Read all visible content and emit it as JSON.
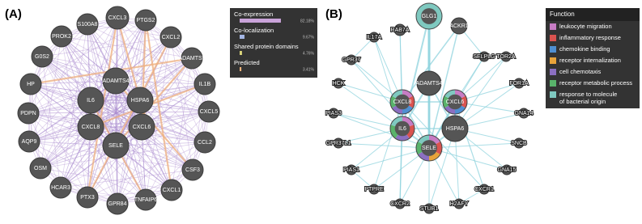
{
  "panel_a": {
    "label": "(A)",
    "nodes": [
      "CXCL3",
      "PTGS2",
      "CXCL2",
      "ADAMTS5",
      "IL1B",
      "CXCL5",
      "CCL2",
      "CSF3",
      "CXCL1",
      "TNFAIP6",
      "GPR84",
      "PTX3",
      "HCAR3",
      "OSM",
      "AQP9",
      "PDPN",
      "HP",
      "G0S2",
      "PROK2",
      "S100A8",
      "ADAMTS4",
      "IL6",
      "HSPA6",
      "CXCL8",
      "CXCL6",
      "SELE"
    ],
    "legend": {
      "items": [
        {
          "name": "Co-expression",
          "value": 82.18,
          "value_label": "82.18%",
          "color": "#c9a3d9"
        },
        {
          "name": "Co-localization",
          "value": 9.67,
          "value_label": "9.67%",
          "color": "#a3b5e3"
        },
        {
          "name": "Shared protein domains",
          "value": 4.76,
          "value_label": "4.76%",
          "color": "#d8d27a"
        },
        {
          "name": "Predicted",
          "value": 3.41,
          "value_label": "3.41%",
          "color": "#f0b27a"
        }
      ]
    }
  },
  "panel_b": {
    "label": "(B)",
    "nodes": [
      "GLG1",
      "RAB7A",
      "ACKR1",
      "IL17A",
      "SELPLG",
      "GPR37",
      "TOR2A",
      "HCK",
      "ADAMTS4",
      "FOR1A",
      "CXCL8",
      "CXCL6",
      "GNA14",
      "PIAS3",
      "IL6",
      "HSPA6",
      "GPR37L1",
      "SELE",
      "SNCB",
      "PIAS1",
      "GNA15",
      "PTPRE",
      "CXCR1",
      "CXCR2",
      "STUB1",
      "H2AFY"
    ],
    "legend": {
      "title": "Function",
      "items": [
        {
          "name": "leukocyte migration",
          "color": "#c77cc4"
        },
        {
          "name": "inflammatory response",
          "color": "#d9534f"
        },
        {
          "name": "chemokine binding",
          "color": "#4f8fd1"
        },
        {
          "name": "receptor internalization",
          "color": "#e8a33a"
        },
        {
          "name": "cell chemotaxis",
          "color": "#8b6fc1"
        },
        {
          "name": "receptor metabolic process",
          "color": "#59b36b"
        },
        {
          "name": "response to molecule of bacterial origin",
          "color": "#7fc9c0"
        }
      ]
    }
  }
}
